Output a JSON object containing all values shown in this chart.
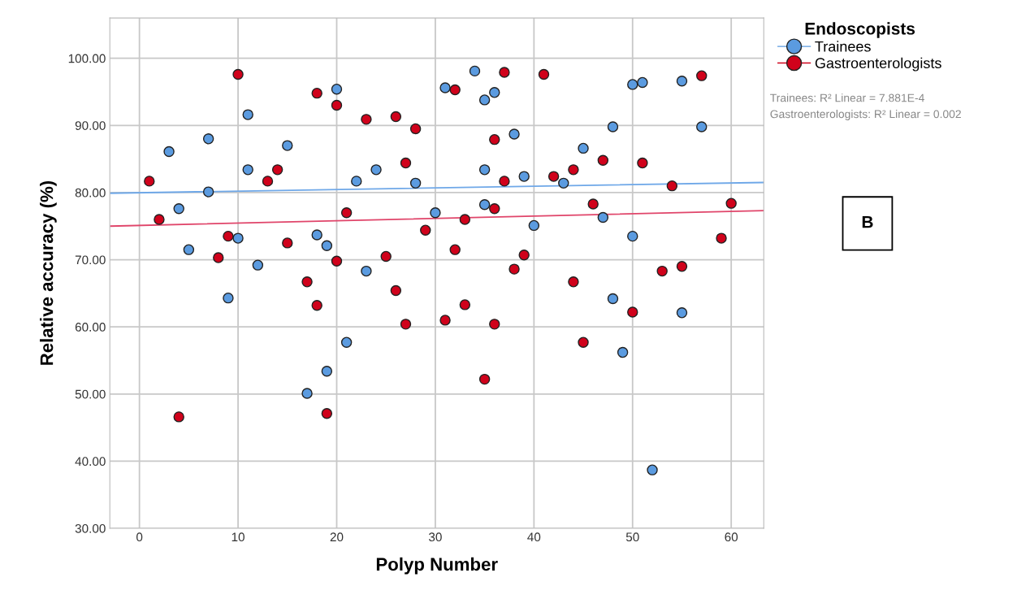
{
  "chart_data": {
    "type": "scatter",
    "xlabel": "Polyp Number",
    "ylabel": "Relative accuracy (%)",
    "legend_title": "Endoscopists",
    "legend": "top right",
    "grid": true,
    "marker": "circle",
    "xlim": [
      -3,
      63.3
    ],
    "xticks": [
      0,
      10,
      20,
      30,
      40,
      50,
      60
    ],
    "ylim": [
      30,
      106
    ],
    "yticks": [
      {
        "value": 30,
        "label": "30.00"
      },
      {
        "value": 40,
        "label": "40.00"
      },
      {
        "value": 50,
        "label": "50.00"
      },
      {
        "value": 60,
        "label": "60.00"
      },
      {
        "value": 70,
        "label": "70.00"
      },
      {
        "value": 80,
        "label": "80.00"
      },
      {
        "value": 90,
        "label": "90.00"
      },
      {
        "value": 100,
        "label": "100.00"
      }
    ],
    "series": [
      {
        "name": "Trainees",
        "color": "#5b9be0",
        "x": [
          3,
          4,
          5,
          7,
          7,
          9,
          10,
          11,
          11,
          12,
          15,
          17,
          18,
          19,
          19,
          20,
          21,
          22,
          23,
          24,
          28,
          30,
          31,
          34,
          35,
          35,
          35,
          36,
          38,
          39,
          40,
          43,
          45,
          47,
          48,
          48,
          49,
          50,
          50,
          51,
          52,
          55,
          55,
          57
        ],
        "values": [
          86.1,
          77.6,
          71.5,
          88.0,
          80.1,
          64.3,
          73.2,
          91.6,
          83.4,
          69.2,
          87.0,
          50.1,
          73.7,
          72.1,
          53.4,
          95.4,
          57.7,
          81.7,
          68.3,
          83.4,
          81.4,
          77.0,
          95.6,
          98.1,
          93.8,
          83.4,
          78.2,
          94.9,
          88.7,
          82.4,
          75.1,
          81.4,
          86.6,
          76.3,
          89.8,
          64.2,
          56.2,
          96.1,
          73.5,
          96.4,
          38.7,
          96.6,
          62.1,
          89.8
        ]
      },
      {
        "name": "Gastroenterologists",
        "color": "#d0021b",
        "x": [
          1,
          2,
          4,
          8,
          9,
          10,
          13,
          14,
          15,
          17,
          18,
          18,
          19,
          20,
          20,
          21,
          23,
          25,
          26,
          26,
          27,
          27,
          28,
          29,
          31,
          32,
          32,
          33,
          33,
          35,
          36,
          36,
          36,
          37,
          37,
          38,
          39,
          41,
          42,
          44,
          44,
          45,
          46,
          47,
          50,
          51,
          53,
          54,
          55,
          57,
          59,
          60
        ],
        "values": [
          81.7,
          76.0,
          46.6,
          70.3,
          73.5,
          97.6,
          81.7,
          83.4,
          72.5,
          66.7,
          94.8,
          63.2,
          47.1,
          93.0,
          69.8,
          77.0,
          90.9,
          70.5,
          91.3,
          65.4,
          84.4,
          60.4,
          89.5,
          74.4,
          61.0,
          95.3,
          71.5,
          76.0,
          63.3,
          52.2,
          87.9,
          77.6,
          60.4,
          97.9,
          81.7,
          68.6,
          70.7,
          97.6,
          82.4,
          83.4,
          66.7,
          57.7,
          78.3,
          84.8,
          62.2,
          84.4,
          68.3,
          81.0,
          69.0,
          97.4,
          73.2,
          78.4
        ]
      },
      {
        "type": "line",
        "marker": "none",
        "color": "#6fa8e8",
        "x": [
          -3,
          63.3
        ],
        "values": [
          79.9,
          81.5
        ]
      },
      {
        "type": "line",
        "marker": "none",
        "color": "#e0456a",
        "x": [
          -3,
          63.3
        ],
        "values": [
          75.0,
          77.3
        ]
      }
    ],
    "annotations": [
      "Trainees: R² Linear = 7.881E-4",
      "Gastroenterologists: R² Linear = 0.002",
      "B"
    ]
  }
}
